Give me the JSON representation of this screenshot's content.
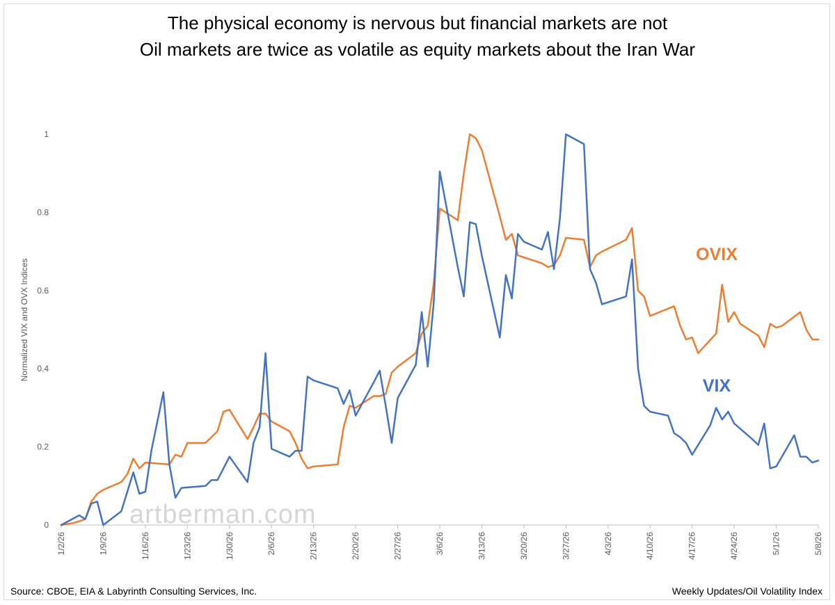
{
  "title": "The physical economy is nervous but financial markets are not",
  "subtitle": "Oil markets are twice as volatile as equity markets about the Iran War",
  "source": "Source: CBOE, EIA & Labyrinth Consulting Services, Inc.",
  "credit": "Weekly Updates/Oil Volatility Index",
  "watermark": "artberman.com",
  "chart_data": {
    "type": "line",
    "title": "The physical economy is nervous but financial markets are not",
    "subtitle": "Oil markets are twice as volatile as equity markets about the Iran War",
    "xlabel": "",
    "ylabel": "Normalized VIX and OVX Indices",
    "ylim": [
      0,
      1.05
    ],
    "y_ticks": [
      "0",
      "0.2",
      "0.4",
      "0.6",
      "0.8",
      "1"
    ],
    "x_range": [
      "2026-01-02",
      "2026-05-08"
    ],
    "x_ticks": [
      "1/2/26",
      "1/9/26",
      "1/16/26",
      "1/23/26",
      "1/30/26",
      "2/6/26",
      "2/13/26",
      "2/20/26",
      "2/27/26",
      "3/6/26",
      "3/13/26",
      "3/20/26",
      "3/27/26",
      "4/3/26",
      "4/10/26",
      "4/17/26",
      "4/24/26",
      "5/1/26",
      "5/8/26"
    ],
    "grid": false,
    "legend": "inline labels",
    "series": [
      {
        "name": "OVIX",
        "color": "#ED7D31",
        "points": [
          [
            "2026-01-02",
            0
          ],
          [
            "2026-01-04",
            0.005
          ],
          [
            "2026-01-05",
            0.01
          ],
          [
            "2026-01-06",
            0.015
          ],
          [
            "2026-01-07",
            0.06
          ],
          [
            "2026-01-08",
            0.08
          ],
          [
            "2026-01-09",
            0.09
          ],
          [
            "2026-01-12",
            0.11
          ],
          [
            "2026-01-13",
            0.13
          ],
          [
            "2026-01-14",
            0.17
          ],
          [
            "2026-01-15",
            0.145
          ],
          [
            "2026-01-16",
            0.16
          ],
          [
            "2026-01-20",
            0.155
          ],
          [
            "2026-01-21",
            0.18
          ],
          [
            "2026-01-22",
            0.175
          ],
          [
            "2026-01-23",
            0.21
          ],
          [
            "2026-01-26",
            0.21
          ],
          [
            "2026-01-27",
            0.225
          ],
          [
            "2026-01-28",
            0.24
          ],
          [
            "2026-01-29",
            0.29
          ],
          [
            "2026-01-30",
            0.295
          ],
          [
            "2026-02-02",
            0.22
          ],
          [
            "2026-02-03",
            0.25
          ],
          [
            "2026-02-04",
            0.285
          ],
          [
            "2026-02-05",
            0.285
          ],
          [
            "2026-02-06",
            0.265
          ],
          [
            "2026-02-09",
            0.24
          ],
          [
            "2026-02-10",
            0.21
          ],
          [
            "2026-02-11",
            0.17
          ],
          [
            "2026-02-12",
            0.145
          ],
          [
            "2026-02-13",
            0.15
          ],
          [
            "2026-02-17",
            0.155
          ],
          [
            "2026-02-18",
            0.25
          ],
          [
            "2026-02-19",
            0.305
          ],
          [
            "2026-02-20",
            0.3
          ],
          [
            "2026-02-23",
            0.33
          ],
          [
            "2026-02-24",
            0.33
          ],
          [
            "2026-02-25",
            0.335
          ],
          [
            "2026-02-26",
            0.39
          ],
          [
            "2026-02-27",
            0.405
          ],
          [
            "2026-03-02",
            0.44
          ],
          [
            "2026-03-03",
            0.49
          ],
          [
            "2026-03-04",
            0.51
          ],
          [
            "2026-03-05",
            0.62
          ],
          [
            "2026-03-06",
            0.81
          ],
          [
            "2026-03-09",
            0.78
          ],
          [
            "2026-03-10",
            0.9
          ],
          [
            "2026-03-11",
            1.0
          ],
          [
            "2026-03-12",
            0.99
          ],
          [
            "2026-03-13",
            0.96
          ],
          [
            "2026-03-16",
            0.79
          ],
          [
            "2026-03-17",
            0.73
          ],
          [
            "2026-03-18",
            0.745
          ],
          [
            "2026-03-19",
            0.69
          ],
          [
            "2026-03-20",
            0.685
          ],
          [
            "2026-03-23",
            0.67
          ],
          [
            "2026-03-24",
            0.66
          ],
          [
            "2026-03-25",
            0.665
          ],
          [
            "2026-03-26",
            0.69
          ],
          [
            "2026-03-27",
            0.735
          ],
          [
            "2026-03-30",
            0.73
          ],
          [
            "2026-03-31",
            0.66
          ],
          [
            "2026-04-01",
            0.69
          ],
          [
            "2026-04-02",
            0.7
          ],
          [
            "2026-04-06",
            0.73
          ],
          [
            "2026-04-07",
            0.76
          ],
          [
            "2026-04-08",
            0.6
          ],
          [
            "2026-04-09",
            0.585
          ],
          [
            "2026-04-10",
            0.535
          ],
          [
            "2026-04-14",
            0.56
          ],
          [
            "2026-04-15",
            0.51
          ],
          [
            "2026-04-16",
            0.475
          ],
          [
            "2026-04-17",
            0.48
          ],
          [
            "2026-04-18",
            0.44
          ],
          [
            "2026-04-21",
            0.49
          ],
          [
            "2026-04-22",
            0.615
          ],
          [
            "2026-04-23",
            0.52
          ],
          [
            "2026-04-24",
            0.545
          ],
          [
            "2026-04-25",
            0.515
          ],
          [
            "2026-04-28",
            0.485
          ],
          [
            "2026-04-29",
            0.455
          ],
          [
            "2026-04-30",
            0.515
          ],
          [
            "2026-05-01",
            0.505
          ],
          [
            "2026-05-02",
            0.51
          ],
          [
            "2026-05-05",
            0.545
          ],
          [
            "2026-05-06",
            0.5
          ],
          [
            "2026-05-07",
            0.475
          ],
          [
            "2026-05-08",
            0.475
          ]
        ]
      },
      {
        "name": "VIX",
        "color": "#4472C4",
        "points": [
          [
            "2026-01-02",
            0
          ],
          [
            "2026-01-05",
            0.025
          ],
          [
            "2026-01-06",
            0.015
          ],
          [
            "2026-01-07",
            0.055
          ],
          [
            "2026-01-08",
            0.06
          ],
          [
            "2026-01-09",
            0.0
          ],
          [
            "2026-01-12",
            0.035
          ],
          [
            "2026-01-14",
            0.135
          ],
          [
            "2026-01-15",
            0.08
          ],
          [
            "2026-01-16",
            0.085
          ],
          [
            "2026-01-17",
            0.19
          ],
          [
            "2026-01-19",
            0.34
          ],
          [
            "2026-01-20",
            0.155
          ],
          [
            "2026-01-21",
            0.07
          ],
          [
            "2026-01-22",
            0.095
          ],
          [
            "2026-01-26",
            0.1
          ],
          [
            "2026-01-27",
            0.115
          ],
          [
            "2026-01-28",
            0.115
          ],
          [
            "2026-01-30",
            0.175
          ],
          [
            "2026-02-02",
            0.11
          ],
          [
            "2026-02-03",
            0.21
          ],
          [
            "2026-02-04",
            0.25
          ],
          [
            "2026-02-05",
            0.44
          ],
          [
            "2026-02-06",
            0.195
          ],
          [
            "2026-02-09",
            0.175
          ],
          [
            "2026-02-10",
            0.19
          ],
          [
            "2026-02-11",
            0.19
          ],
          [
            "2026-02-12",
            0.38
          ],
          [
            "2026-02-13",
            0.37
          ],
          [
            "2026-02-17",
            0.35
          ],
          [
            "2026-02-18",
            0.31
          ],
          [
            "2026-02-19",
            0.345
          ],
          [
            "2026-02-20",
            0.28
          ],
          [
            "2026-02-23",
            0.365
          ],
          [
            "2026-02-24",
            0.395
          ],
          [
            "2026-02-25",
            0.305
          ],
          [
            "2026-02-26",
            0.21
          ],
          [
            "2026-02-27",
            0.325
          ],
          [
            "2026-03-02",
            0.41
          ],
          [
            "2026-03-03",
            0.545
          ],
          [
            "2026-03-04",
            0.405
          ],
          [
            "2026-03-05",
            0.57
          ],
          [
            "2026-03-06",
            0.905
          ],
          [
            "2026-03-09",
            0.66
          ],
          [
            "2026-03-10",
            0.585
          ],
          [
            "2026-03-11",
            0.775
          ],
          [
            "2026-03-12",
            0.77
          ],
          [
            "2026-03-13",
            0.69
          ],
          [
            "2026-03-16",
            0.48
          ],
          [
            "2026-03-17",
            0.64
          ],
          [
            "2026-03-18",
            0.58
          ],
          [
            "2026-03-19",
            0.745
          ],
          [
            "2026-03-20",
            0.725
          ],
          [
            "2026-03-23",
            0.705
          ],
          [
            "2026-03-24",
            0.75
          ],
          [
            "2026-03-25",
            0.655
          ],
          [
            "2026-03-26",
            0.785
          ],
          [
            "2026-03-27",
            1.0
          ],
          [
            "2026-03-30",
            0.975
          ],
          [
            "2026-03-31",
            0.655
          ],
          [
            "2026-04-01",
            0.62
          ],
          [
            "2026-04-02",
            0.565
          ],
          [
            "2026-04-06",
            0.585
          ],
          [
            "2026-04-07",
            0.68
          ],
          [
            "2026-04-08",
            0.4
          ],
          [
            "2026-04-09",
            0.305
          ],
          [
            "2026-04-10",
            0.29
          ],
          [
            "2026-04-13",
            0.28
          ],
          [
            "2026-04-14",
            0.235
          ],
          [
            "2026-04-15",
            0.225
          ],
          [
            "2026-04-16",
            0.21
          ],
          [
            "2026-04-17",
            0.18
          ],
          [
            "2026-04-20",
            0.255
          ],
          [
            "2026-04-21",
            0.3
          ],
          [
            "2026-04-22",
            0.27
          ],
          [
            "2026-04-23",
            0.29
          ],
          [
            "2026-04-24",
            0.26
          ],
          [
            "2026-04-27",
            0.22
          ],
          [
            "2026-04-28",
            0.205
          ],
          [
            "2026-04-29",
            0.26
          ],
          [
            "2026-04-30",
            0.145
          ],
          [
            "2026-05-01",
            0.15
          ],
          [
            "2026-05-04",
            0.23
          ],
          [
            "2026-05-05",
            0.175
          ],
          [
            "2026-05-06",
            0.175
          ],
          [
            "2026-05-07",
            0.16
          ],
          [
            "2026-05-08",
            0.165
          ]
        ]
      }
    ]
  }
}
